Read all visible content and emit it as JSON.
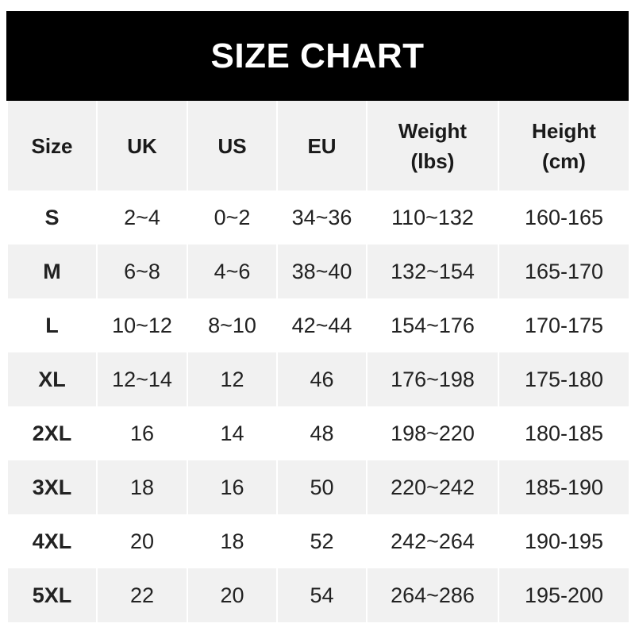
{
  "chart_data": {
    "type": "table",
    "title": "SIZE CHART",
    "columns": [
      "Size",
      "UK",
      "US",
      "EU",
      "Weight\n(lbs)",
      "Height\n(cm)"
    ],
    "rows": [
      [
        "S",
        "2~4",
        "0~2",
        "34~36",
        "110~132",
        "160-165"
      ],
      [
        "M",
        "6~8",
        "4~6",
        "38~40",
        "132~154",
        "165-170"
      ],
      [
        "L",
        "10~12",
        "8~10",
        "42~44",
        "154~176",
        "170-175"
      ],
      [
        "XL",
        "12~14",
        "12",
        "46",
        "176~198",
        "175-180"
      ],
      [
        "2XL",
        "16",
        "14",
        "48",
        "198~220",
        "180-185"
      ],
      [
        "3XL",
        "18",
        "16",
        "50",
        "220~242",
        "185-190"
      ],
      [
        "4XL",
        "20",
        "18",
        "52",
        "242~264",
        "190-195"
      ],
      [
        "5XL",
        "22",
        "20",
        "54",
        "264~286",
        "195-200"
      ]
    ],
    "colors": {
      "title_bg": "#000000",
      "header_bg": "#f1f1f1",
      "stripe": "#f1f1f1"
    }
  }
}
